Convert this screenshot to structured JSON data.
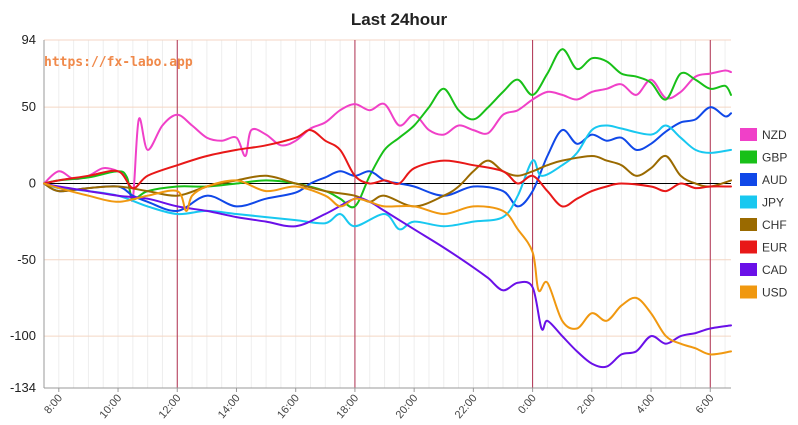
{
  "chart_data": {
    "type": "line",
    "title": "Last 24hour",
    "watermark": "https://fx-labo.app",
    "ylim": [
      -134,
      94
    ],
    "y_ticks": [
      94,
      50,
      0,
      -50,
      -100,
      -134
    ],
    "x_ticks": [
      "8:00",
      "10:00",
      "12:00",
      "14:00",
      "16:00",
      "18:00",
      "20:00",
      "22:00",
      "0:00",
      "2:00",
      "4:00",
      "6:00"
    ],
    "x_range": [
      7.5,
      30.7
    ],
    "day_markers": [
      7.5,
      12,
      18,
      24,
      30
    ],
    "zero_line": true,
    "grid": true,
    "legend_position": "right",
    "series": [
      {
        "name": "NZD",
        "color": "#f040c8",
        "points": [
          [
            7.5,
            0
          ],
          [
            8,
            8
          ],
          [
            8.5,
            3
          ],
          [
            9,
            5
          ],
          [
            9.5,
            10
          ],
          [
            10,
            8
          ],
          [
            10.3,
            4
          ],
          [
            10.5,
            -10
          ],
          [
            10.7,
            42
          ],
          [
            11,
            22
          ],
          [
            11.5,
            38
          ],
          [
            12,
            45
          ],
          [
            12.5,
            38
          ],
          [
            13,
            30
          ],
          [
            13.5,
            28
          ],
          [
            14,
            30
          ],
          [
            14.3,
            18
          ],
          [
            14.5,
            35
          ],
          [
            15,
            32
          ],
          [
            15.5,
            25
          ],
          [
            16,
            28
          ],
          [
            16.5,
            36
          ],
          [
            17,
            40
          ],
          [
            17.5,
            48
          ],
          [
            18,
            52
          ],
          [
            18.5,
            48
          ],
          [
            19,
            52
          ],
          [
            19.5,
            38
          ],
          [
            20,
            45
          ],
          [
            20.5,
            35
          ],
          [
            21,
            32
          ],
          [
            21.5,
            38
          ],
          [
            22,
            35
          ],
          [
            22.5,
            33
          ],
          [
            23,
            45
          ],
          [
            23.5,
            48
          ],
          [
            24,
            55
          ],
          [
            24.5,
            60
          ],
          [
            25,
            58
          ],
          [
            25.5,
            55
          ],
          [
            26,
            60
          ],
          [
            26.5,
            62
          ],
          [
            27,
            65
          ],
          [
            27.5,
            58
          ],
          [
            28,
            68
          ],
          [
            28.5,
            56
          ],
          [
            29,
            60
          ],
          [
            29.5,
            70
          ],
          [
            30,
            72
          ],
          [
            30.5,
            74
          ],
          [
            30.7,
            73
          ]
        ]
      },
      {
        "name": "GBP",
        "color": "#18c018",
        "points": [
          [
            7.5,
            0
          ],
          [
            8,
            2
          ],
          [
            9,
            4
          ],
          [
            10,
            8
          ],
          [
            10.3,
            4
          ],
          [
            10.5,
            -10
          ],
          [
            11,
            -5
          ],
          [
            12,
            -2
          ],
          [
            13,
            -2
          ],
          [
            14,
            0
          ],
          [
            15,
            2
          ],
          [
            16,
            0
          ],
          [
            17,
            -5
          ],
          [
            17.5,
            -10
          ],
          [
            18,
            -15
          ],
          [
            18.5,
            5
          ],
          [
            19,
            22
          ],
          [
            19.5,
            30
          ],
          [
            20,
            38
          ],
          [
            20.5,
            50
          ],
          [
            21,
            62
          ],
          [
            21.5,
            48
          ],
          [
            22,
            42
          ],
          [
            22.5,
            50
          ],
          [
            23,
            60
          ],
          [
            23.5,
            68
          ],
          [
            24,
            58
          ],
          [
            24.5,
            72
          ],
          [
            25,
            88
          ],
          [
            25.5,
            75
          ],
          [
            26,
            82
          ],
          [
            26.5,
            80
          ],
          [
            27,
            72
          ],
          [
            27.5,
            70
          ],
          [
            28,
            66
          ],
          [
            28.5,
            55
          ],
          [
            29,
            72
          ],
          [
            29.5,
            68
          ],
          [
            30,
            62
          ],
          [
            30.5,
            64
          ],
          [
            30.7,
            58
          ]
        ]
      },
      {
        "name": "AUD",
        "color": "#1048e8",
        "points": [
          [
            7.5,
            0
          ],
          [
            8,
            -5
          ],
          [
            9,
            -3
          ],
          [
            10,
            -2
          ],
          [
            10.5,
            -8
          ],
          [
            11,
            -12
          ],
          [
            12,
            -18
          ],
          [
            13,
            -8
          ],
          [
            14,
            -15
          ],
          [
            15,
            -10
          ],
          [
            16,
            -6
          ],
          [
            16.5,
            0
          ],
          [
            17,
            4
          ],
          [
            17.5,
            8
          ],
          [
            18,
            5
          ],
          [
            18.5,
            8
          ],
          [
            19,
            2
          ],
          [
            19.5,
            0
          ],
          [
            20,
            -2
          ],
          [
            21,
            -8
          ],
          [
            22,
            -2
          ],
          [
            23,
            -5
          ],
          [
            23.5,
            -15
          ],
          [
            24,
            -5
          ],
          [
            24.5,
            18
          ],
          [
            25,
            35
          ],
          [
            25.5,
            26
          ],
          [
            26,
            32
          ],
          [
            26.5,
            28
          ],
          [
            27,
            30
          ],
          [
            27.5,
            22
          ],
          [
            28,
            26
          ],
          [
            28.5,
            34
          ],
          [
            29,
            40
          ],
          [
            29.5,
            42
          ],
          [
            30,
            50
          ],
          [
            30.5,
            44
          ],
          [
            30.7,
            46
          ]
        ]
      },
      {
        "name": "JPY",
        "color": "#18c8f0",
        "points": [
          [
            7.5,
            0
          ],
          [
            8,
            -3
          ],
          [
            9,
            -5
          ],
          [
            10,
            -8
          ],
          [
            11,
            -15
          ],
          [
            12,
            -20
          ],
          [
            13,
            -18
          ],
          [
            14,
            -20
          ],
          [
            15,
            -22
          ],
          [
            16,
            -24
          ],
          [
            17,
            -26
          ],
          [
            17.5,
            -20
          ],
          [
            18,
            -28
          ],
          [
            19,
            -20
          ],
          [
            19.5,
            -30
          ],
          [
            20,
            -25
          ],
          [
            21,
            -28
          ],
          [
            22,
            -25
          ],
          [
            23,
            -22
          ],
          [
            23.5,
            -8
          ],
          [
            24,
            15
          ],
          [
            24.3,
            5
          ],
          [
            25,
            12
          ],
          [
            25.5,
            20
          ],
          [
            26,
            35
          ],
          [
            26.5,
            38
          ],
          [
            27,
            36
          ],
          [
            28,
            32
          ],
          [
            28.5,
            38
          ],
          [
            29,
            30
          ],
          [
            29.5,
            22
          ],
          [
            30,
            20
          ],
          [
            30.7,
            22
          ]
        ]
      },
      {
        "name": "CHF",
        "color": "#9a6a00",
        "points": [
          [
            7.5,
            0
          ],
          [
            8,
            -5
          ],
          [
            9,
            -3
          ],
          [
            10,
            -2
          ],
          [
            11,
            -5
          ],
          [
            12,
            -8
          ],
          [
            13,
            -2
          ],
          [
            14,
            2
          ],
          [
            15,
            5
          ],
          [
            16,
            0
          ],
          [
            17,
            -5
          ],
          [
            18,
            -8
          ],
          [
            18.5,
            -12
          ],
          [
            19,
            -8
          ],
          [
            20,
            -15
          ],
          [
            21,
            -8
          ],
          [
            21.5,
            -2
          ],
          [
            22,
            8
          ],
          [
            22.5,
            15
          ],
          [
            23,
            8
          ],
          [
            23.5,
            5
          ],
          [
            24,
            8
          ],
          [
            24.5,
            12
          ],
          [
            25,
            15
          ],
          [
            26,
            18
          ],
          [
            26.5,
            15
          ],
          [
            27,
            12
          ],
          [
            27.5,
            5
          ],
          [
            28,
            10
          ],
          [
            28.5,
            18
          ],
          [
            29,
            5
          ],
          [
            29.5,
            0
          ],
          [
            30,
            -2
          ],
          [
            30.7,
            2
          ]
        ]
      },
      {
        "name": "EUR",
        "color": "#e81818",
        "points": [
          [
            7.5,
            0
          ],
          [
            8,
            2
          ],
          [
            9,
            5
          ],
          [
            10,
            8
          ],
          [
            10.5,
            -3
          ],
          [
            11,
            5
          ],
          [
            12,
            12
          ],
          [
            13,
            18
          ],
          [
            14,
            22
          ],
          [
            15,
            25
          ],
          [
            16,
            30
          ],
          [
            16.5,
            35
          ],
          [
            17,
            28
          ],
          [
            17.5,
            22
          ],
          [
            18,
            5
          ],
          [
            18.5,
            0
          ],
          [
            19,
            2
          ],
          [
            19.5,
            0
          ],
          [
            20,
            10
          ],
          [
            21,
            15
          ],
          [
            22,
            12
          ],
          [
            23,
            8
          ],
          [
            23.5,
            0
          ],
          [
            24,
            5
          ],
          [
            24.5,
            -5
          ],
          [
            25,
            -15
          ],
          [
            25.5,
            -10
          ],
          [
            26,
            -5
          ],
          [
            26.5,
            -2
          ],
          [
            27,
            0
          ],
          [
            28,
            -2
          ],
          [
            28.5,
            -5
          ],
          [
            29,
            0
          ],
          [
            29.5,
            -3
          ],
          [
            30,
            -2
          ],
          [
            30.7,
            -2
          ]
        ]
      },
      {
        "name": "CAD",
        "color": "#6a10e8",
        "points": [
          [
            7.5,
            0
          ],
          [
            8,
            -2
          ],
          [
            9,
            -5
          ],
          [
            10,
            -8
          ],
          [
            11,
            -10
          ],
          [
            12,
            -15
          ],
          [
            13,
            -18
          ],
          [
            14,
            -22
          ],
          [
            15,
            -25
          ],
          [
            16,
            -28
          ],
          [
            17,
            -20
          ],
          [
            18,
            -10
          ],
          [
            18.5,
            -12
          ],
          [
            19,
            -18
          ],
          [
            20,
            -30
          ],
          [
            21,
            -42
          ],
          [
            22,
            -55
          ],
          [
            22.5,
            -62
          ],
          [
            23,
            -70
          ],
          [
            23.5,
            -65
          ],
          [
            24,
            -68
          ],
          [
            24.3,
            -95
          ],
          [
            24.5,
            -90
          ],
          [
            25,
            -100
          ],
          [
            25.5,
            -110
          ],
          [
            26,
            -118
          ],
          [
            26.5,
            -120
          ],
          [
            27,
            -112
          ],
          [
            27.5,
            -110
          ],
          [
            28,
            -100
          ],
          [
            28.5,
            -105
          ],
          [
            29,
            -100
          ],
          [
            29.5,
            -98
          ],
          [
            30,
            -95
          ],
          [
            30.7,
            -93
          ]
        ]
      },
      {
        "name": "USD",
        "color": "#f09810",
        "points": [
          [
            7.5,
            0
          ],
          [
            8,
            -3
          ],
          [
            9,
            -8
          ],
          [
            10,
            -12
          ],
          [
            11,
            -8
          ],
          [
            12,
            -5
          ],
          [
            12.3,
            -18
          ],
          [
            12.5,
            -8
          ],
          [
            13,
            -2
          ],
          [
            14,
            2
          ],
          [
            15,
            -5
          ],
          [
            16,
            -2
          ],
          [
            17,
            -8
          ],
          [
            17.5,
            -15
          ],
          [
            18,
            -10
          ],
          [
            18.5,
            -12
          ],
          [
            19,
            -15
          ],
          [
            20,
            -15
          ],
          [
            21,
            -20
          ],
          [
            22,
            -15
          ],
          [
            23,
            -18
          ],
          [
            23.5,
            -30
          ],
          [
            24,
            -45
          ],
          [
            24.2,
            -70
          ],
          [
            24.5,
            -65
          ],
          [
            25,
            -90
          ],
          [
            25.5,
            -95
          ],
          [
            26,
            -85
          ],
          [
            26.5,
            -90
          ],
          [
            27,
            -80
          ],
          [
            27.5,
            -75
          ],
          [
            28,
            -85
          ],
          [
            28.5,
            -100
          ],
          [
            29,
            -105
          ],
          [
            29.5,
            -108
          ],
          [
            30,
            -112
          ],
          [
            30.7,
            -110
          ]
        ]
      }
    ]
  }
}
